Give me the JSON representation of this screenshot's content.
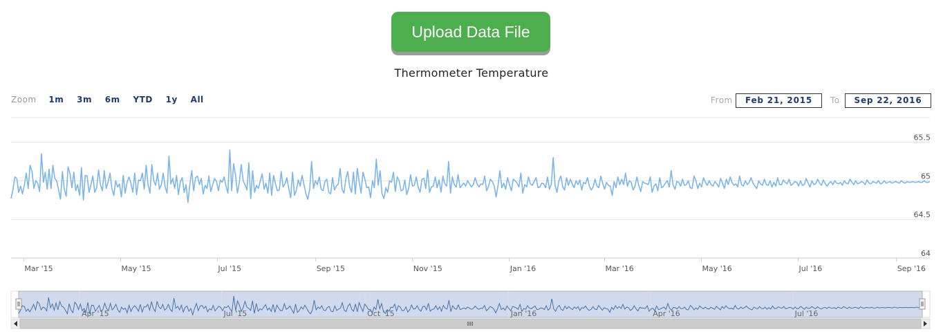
{
  "upload_button": {
    "label": "Upload Data File"
  },
  "range_selector": {
    "zoom_label": "Zoom",
    "buttons": [
      "1m",
      "3m",
      "6m",
      "YTD",
      "1y",
      "All"
    ],
    "from_label": "From",
    "from_value": "Feb 21, 2015",
    "to_label": "To",
    "to_value": "Sep 22, 2016"
  },
  "chart_data": {
    "type": "line",
    "title": "Thermometer Temperature",
    "x_start": "2015-02-21",
    "x_end": "2016-09-22",
    "xlim": [
      "2015-02-21",
      "2016-09-22"
    ],
    "ylim": [
      64,
      65.8
    ],
    "y_ticks": [
      64,
      64.5,
      65,
      65.5
    ],
    "y_tick_labels": [
      "64",
      "64.5",
      "65",
      "65.5"
    ],
    "x_ticks": [
      {
        "date": "2015-03-01",
        "label": "Mar '15"
      },
      {
        "date": "2015-05-01",
        "label": "May '15"
      },
      {
        "date": "2015-07-01",
        "label": "Jul '15"
      },
      {
        "date": "2015-09-01",
        "label": "Sep '15"
      },
      {
        "date": "2015-11-01",
        "label": "Nov '15"
      },
      {
        "date": "2016-01-01",
        "label": "Jan '16"
      },
      {
        "date": "2016-03-01",
        "label": "Mar '16"
      },
      {
        "date": "2016-05-01",
        "label": "May '16"
      },
      {
        "date": "2016-07-01",
        "label": "Jul '16"
      },
      {
        "date": "2016-09-01",
        "label": "Sep '16"
      }
    ],
    "navigator_ticks": [
      {
        "date": "2015-04-01",
        "label": "Apr '15"
      },
      {
        "date": "2015-07-01",
        "label": "Jul '15"
      },
      {
        "date": "2015-10-01",
        "label": "Oct '15"
      },
      {
        "date": "2016-01-01",
        "label": "Jan '16"
      },
      {
        "date": "2016-04-01",
        "label": "Apr '16"
      },
      {
        "date": "2016-07-01",
        "label": "Jul '16"
      }
    ],
    "grid": true,
    "legend": "none",
    "series": [
      {
        "color": "#7cb5ec",
        "values": [
          64.77,
          64.89,
          65.05,
          65.03,
          64.85,
          64.93,
          64.83,
          64.95,
          65.1,
          64.9,
          65.2,
          65.12,
          64.9,
          65.0,
          64.97,
          64.86,
          65.35,
          64.98,
          65.11,
          64.89,
          65.15,
          64.9,
          65.2,
          65.03,
          65.0,
          64.88,
          64.76,
          65.12,
          64.89,
          64.8,
          65.18,
          65.09,
          64.91,
          65.11,
          64.87,
          64.95,
          64.81,
          65.17,
          64.75,
          65.07,
          65.06,
          64.85,
          64.95,
          65.06,
          64.85,
          64.91,
          65.14,
          64.95,
          64.87,
          65.13,
          64.9,
          64.98,
          65.1,
          64.9,
          64.81,
          65.0,
          64.92,
          64.96,
          64.79,
          65.07,
          64.84,
          64.98,
          65.05,
          64.97,
          64.85,
          65.1,
          64.82,
          65.01,
          65.0,
          65.1,
          64.89,
          65.2,
          64.95,
          64.84,
          65.21,
          65.0,
          64.94,
          65.1,
          64.89,
          64.95,
          65.1,
          64.92,
          64.84,
          65.32,
          64.96,
          65.03,
          64.9,
          65.07,
          64.82,
          64.99,
          65.04,
          64.85,
          64.95,
          64.72,
          64.95,
          65.13,
          64.87,
          65.04,
          65.06,
          64.95,
          65.03,
          64.83,
          64.94,
          64.9,
          65.06,
          64.86,
          64.95,
          65.03,
          64.99,
          64.87,
          65.01,
          64.98,
          65.05,
          64.93,
          64.84,
          65.4,
          64.87,
          65.22,
          65.07,
          64.84,
          64.98,
          65.21,
          65.0,
          64.95,
          64.88,
          65.23,
          64.77,
          65.13,
          64.85,
          64.94,
          64.9,
          65.0,
          65.09,
          64.89,
          64.97,
          64.84,
          65.1,
          64.81,
          65.07,
          64.96,
          64.87,
          64.88,
          65.12,
          64.92,
          64.96,
          65.04,
          64.9,
          64.78,
          65.11,
          64.81,
          64.88,
          65.01,
          64.93,
          65.07,
          64.95,
          64.83,
          64.76,
          64.89,
          65.25,
          64.9,
          65.0,
          64.95,
          65.05,
          64.89,
          64.87,
          64.99,
          65.02,
          64.85,
          64.83,
          65.04,
          64.88,
          64.93,
          64.96,
          65.16,
          64.89,
          64.84,
          65.03,
          65.12,
          64.92,
          64.85,
          65.11,
          64.83,
          65.16,
          64.99,
          64.84,
          65.11,
          65.02,
          64.91,
          64.92,
          64.78,
          65.0,
          64.91,
          65.28,
          64.94,
          65.13,
          64.83,
          64.77,
          64.91,
          64.85,
          65.0,
          64.98,
          65.11,
          64.86,
          65.05,
          65.0,
          64.87,
          64.88,
          65.01,
          64.82,
          64.9,
          65.08,
          64.93,
          64.94,
          65.05,
          64.92,
          64.85,
          65.02,
          65.03,
          64.9,
          65.14,
          64.85,
          64.92,
          64.93,
          65.05,
          64.91,
          65.01,
          64.85,
          65.06,
          64.96,
          64.93,
          65.25,
          64.84,
          65.05,
          64.95,
          64.92,
          65.08,
          64.91,
          64.94,
          64.97,
          64.93,
          65.0,
          64.96,
          64.92,
          64.95,
          65.04,
          64.96,
          64.92,
          64.96,
          64.95,
          65.06,
          64.87,
          64.93,
          65.02,
          64.99,
          64.93,
          64.79,
          64.94,
          65.13,
          64.91,
          64.97,
          64.89,
          65.04,
          64.95,
          64.87,
          65.02,
          65.0,
          64.97,
          64.92,
          65.1,
          64.84,
          64.95,
          64.92,
          65.05,
          64.96,
          64.94,
          64.99,
          65.04,
          64.91,
          64.92,
          64.97,
          64.96,
          64.91,
          65.05,
          64.89,
          64.95,
          65.3,
          64.94,
          64.85,
          65.0,
          65.06,
          64.92,
          64.88,
          65.04,
          64.94,
          65.02,
          64.96,
          64.91,
          65.0,
          64.95,
          65.01,
          64.88,
          64.98,
          64.96,
          65.04,
          64.93,
          64.88,
          64.92,
          65.02,
          64.93,
          64.91,
          65.06,
          64.97,
          64.89,
          64.98,
          64.94,
          64.93,
          64.81,
          64.99,
          64.91,
          65.05,
          64.95,
          65.02,
          64.95,
          65.1,
          64.93,
          65.0,
          64.98,
          64.88,
          64.93,
          65.05,
          64.94,
          64.86,
          64.99,
          64.97,
          64.96,
          64.95,
          65.05,
          64.85,
          64.93,
          64.96,
          64.87,
          65.04,
          64.91,
          64.93,
          64.97,
          65.0,
          64.92,
          65.13,
          64.95,
          64.89,
          64.99,
          64.98,
          64.93,
          65.02,
          64.94,
          64.95,
          65.0,
          64.91,
          64.9,
          65.06,
          65.0,
          64.9,
          64.97,
          64.92,
          65.04,
          64.98,
          64.94,
          65.0,
          64.95,
          64.93,
          64.99,
          64.96,
          64.92,
          65.03,
          64.97,
          64.9,
          65.02,
          64.95,
          65.05,
          64.98,
          64.94,
          64.96,
          64.92,
          65.06,
          64.95,
          64.93,
          65.0,
          64.95,
          64.98,
          65.04,
          64.97,
          64.93,
          64.9,
          65.0,
          64.96,
          64.94,
          65.02,
          64.95,
          64.94,
          65.0,
          64.92,
          64.98,
          64.93,
          65.04,
          64.95,
          64.95,
          65.01,
          64.98,
          64.96,
          65.02,
          64.94,
          64.96,
          64.99,
          64.98,
          64.93,
          65.0,
          64.94,
          64.95,
          65.03,
          64.97,
          64.92,
          65.0,
          64.95,
          64.96,
          65.02,
          64.97,
          64.94,
          65.01,
          64.96,
          64.93,
          64.97,
          64.99,
          64.95,
          65.0,
          64.97,
          64.96,
          64.98,
          64.94,
          65.0,
          64.97,
          64.96,
          65.02,
          64.98,
          64.95,
          65.0,
          64.96,
          64.97,
          64.99,
          64.98,
          64.95,
          65.01,
          64.97,
          64.96,
          64.99,
          64.98,
          64.97,
          65.0,
          64.96,
          64.97,
          65.0,
          64.97,
          64.98,
          64.99,
          64.97,
          64.98,
          64.99,
          64.98,
          64.97,
          65.0,
          64.98,
          64.97,
          64.99,
          64.98,
          64.98,
          64.99,
          64.98,
          64.98,
          64.99,
          64.98,
          64.98,
          65.0,
          64.98,
          64.98,
          64.99
        ]
      }
    ]
  }
}
